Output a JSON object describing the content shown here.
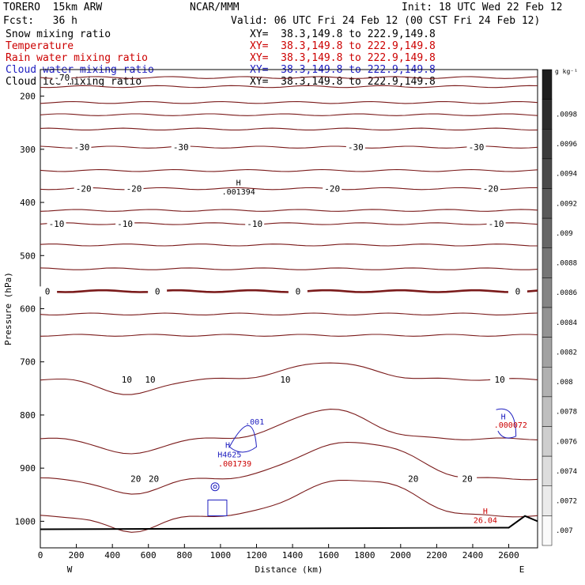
{
  "header": {
    "model": "TORERO  15km ARW",
    "org": "NCAR/MMM",
    "init": "Init: 18 UTC Wed 22 Feb 12",
    "fcst": "Fcst:   36 h",
    "valid": "Valid: 06 UTC Fri 24 Feb 12 (00 CST Fri 24 Feb 12)"
  },
  "fields": [
    {
      "name": "Snow mixing ratio",
      "xy": "XY=  38.3,149.8 to 222.9,149.8",
      "color": "#000000"
    },
    {
      "name": "Temperature",
      "xy": "XY=  38.3,149.8 to 222.9,149.8",
      "color": "#cc0000"
    },
    {
      "name": "Rain water mixing ratio",
      "xy": "XY=  38.3,149.8 to 222.9,149.8",
      "color": "#cc0000"
    },
    {
      "name": "Cloud water mixing ratio",
      "xy": "XY=  38.3,149.8 to 222.9,149.8",
      "color": "#2020c0"
    },
    {
      "name": "Cloud ice mixing ratio",
      "xy": "XY=  38.3,149.8 to 222.9,149.8",
      "color": "#000000"
    }
  ],
  "chart_data": {
    "type": "line",
    "xlabel": "Distance (km)",
    "ylabel": "Pressure (hPa)",
    "xlim": [
      0,
      2760
    ],
    "ylim": [
      150,
      1050
    ],
    "x_ticks": [
      "0",
      "200",
      "400",
      "600",
      "800",
      "1000",
      "1200",
      "1400",
      "1600",
      "1800",
      "2000",
      "2200",
      "2400",
      "2600"
    ],
    "y_ticks": [
      "200",
      "300",
      "400",
      "500",
      "600",
      "700",
      "800",
      "900",
      "1000"
    ],
    "left_end": "W",
    "right_end": "E",
    "isotherm_color": "#7a1a1a",
    "isotherms": [
      {
        "p": 165,
        "label": "-70",
        "label_x": 120
      },
      {
        "p": 182,
        "label": "",
        "label_x": null
      },
      {
        "p": 212,
        "label": "",
        "label_x": null
      },
      {
        "p": 235,
        "label": "",
        "label_x": null
      },
      {
        "p": 262,
        "label": "",
        "label_x": null
      },
      {
        "p": 296,
        "label": "-30",
        "label_x": [
          230,
          780,
          1750,
          2420
        ]
      },
      {
        "p": 340,
        "label": "",
        "label_x": null
      },
      {
        "p": 374,
        "label": "-20",
        "label_x": [
          240,
          520,
          1620,
          2500
        ]
      },
      {
        "p": 415,
        "label": "",
        "label_x": null
      },
      {
        "p": 440,
        "label": "-10",
        "label_x": [
          90,
          470,
          1190,
          2530
        ]
      },
      {
        "p": 480,
        "label": "",
        "label_x": null
      },
      {
        "p": 525,
        "label": "",
        "label_x": null
      },
      {
        "p": 567,
        "label": "0",
        "label_x": [
          40,
          650,
          1430,
          2650
        ],
        "bold": true
      },
      {
        "p": 610,
        "label": "",
        "label_x": null
      },
      {
        "p": 650,
        "label": "",
        "label_x": null
      },
      {
        "p": 733,
        "label": "10",
        "label_x": [
          480,
          610,
          1360,
          2550
        ]
      },
      {
        "p": 845,
        "label": "",
        "label_x": null
      },
      {
        "p": 920,
        "label": "20",
        "label_x": [
          530,
          630,
          2070,
          2370
        ]
      },
      {
        "p": 990,
        "label": "",
        "label_x": null
      }
    ],
    "annotations": [
      {
        "text": "H",
        "x": 1100,
        "p": 368,
        "color": "#000000"
      },
      {
        "text": ".001394",
        "x": 1100,
        "p": 385,
        "color": "#000000"
      },
      {
        "text": ".001",
        "x": 1190,
        "p": 818,
        "color": "#2020c0"
      },
      {
        "text": "H",
        "x": 1040,
        "p": 862,
        "color": "#2020c0"
      },
      {
        "text": "H4625",
        "x": 1050,
        "p": 880,
        "color": "#2020c0"
      },
      {
        "text": ".001739",
        "x": 1080,
        "p": 897,
        "color": "#cc0000"
      },
      {
        "text": "H",
        "x": 2570,
        "p": 808,
        "color": "#2020c0"
      },
      {
        "text": ".000072",
        "x": 2610,
        "p": 824,
        "color": "#cc0000"
      },
      {
        "text": "H",
        "x": 2470,
        "p": 986,
        "color": "#cc0000"
      },
      {
        "text": "26.04",
        "x": 2470,
        "p": 1003,
        "color": "#cc0000"
      }
    ],
    "colorbar": {
      "unit": "g kg⁻¹",
      "labels": [
        ".0098",
        ".0096",
        ".0094",
        ".0092",
        ".009",
        ".0088",
        ".0086",
        ".0084",
        ".0082",
        ".008",
        ".0078",
        ".0076",
        ".0074",
        ".0072",
        ".007"
      ]
    }
  }
}
